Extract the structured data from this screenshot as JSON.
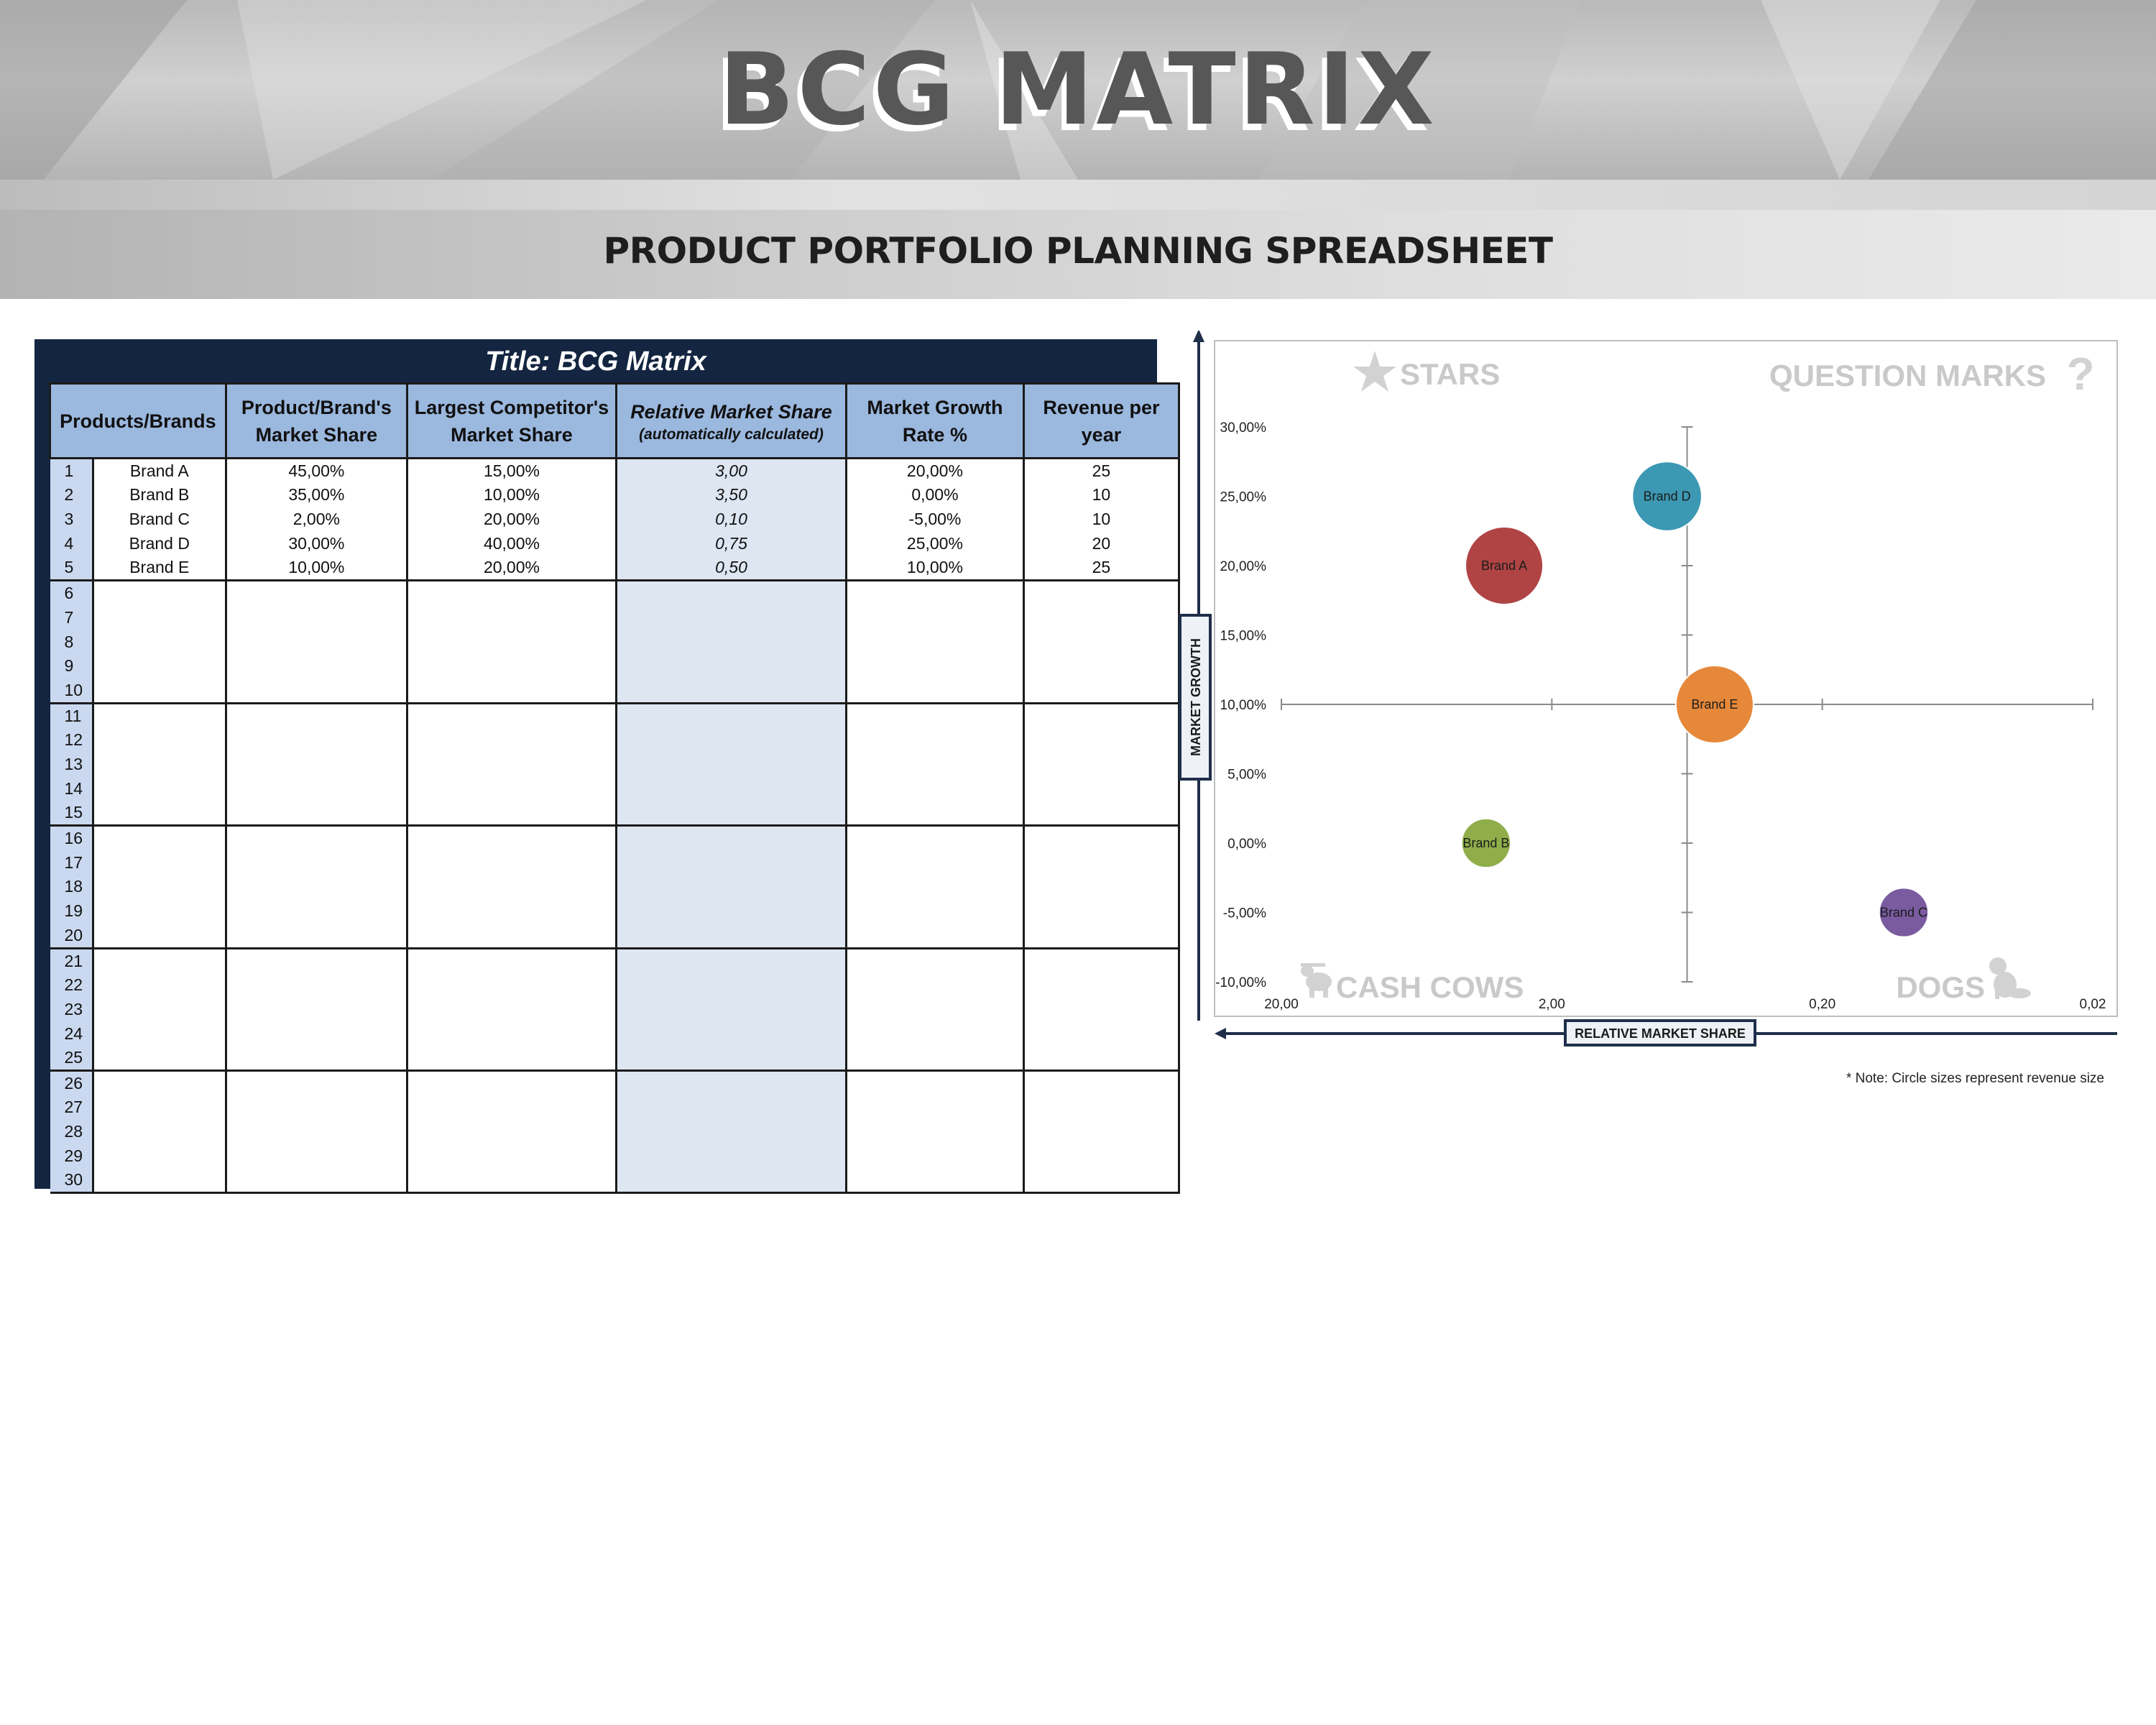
{
  "header": {
    "title": "BCG MATRIX",
    "subtitle": "PRODUCT PORTFOLIO PLANNING SPREADSHEET"
  },
  "sheet": {
    "title": "Title: BCG Matrix",
    "columns": {
      "products": "Products/Brands",
      "market_share_line1": "Product/Brand's",
      "market_share_line2": "Market Share",
      "competitor_line1": "Largest Competitor's",
      "competitor_line2": "Market Share",
      "relative": "Relative Market Share",
      "relative_note": "(automatically calculated)",
      "growth_line1": "Market Growth",
      "growth_line2": "Rate %",
      "revenue_line1": "Revenue per",
      "revenue_line2": "year"
    },
    "rows": [
      {
        "n": "1",
        "brand": "Brand A",
        "share": "45,00%",
        "competitor": "15,00%",
        "relative": "3,00",
        "growth": "20,00%",
        "revenue": "25"
      },
      {
        "n": "2",
        "brand": "Brand B",
        "share": "35,00%",
        "competitor": "10,00%",
        "relative": "3,50",
        "growth": "0,00%",
        "revenue": "10"
      },
      {
        "n": "3",
        "brand": "Brand C",
        "share": "2,00%",
        "competitor": "20,00%",
        "relative": "0,10",
        "growth": "-5,00%",
        "revenue": "10"
      },
      {
        "n": "4",
        "brand": "Brand D",
        "share": "30,00%",
        "competitor": "40,00%",
        "relative": "0,75",
        "growth": "25,00%",
        "revenue": "20"
      },
      {
        "n": "5",
        "brand": "Brand E",
        "share": "10,00%",
        "competitor": "20,00%",
        "relative": "0,50",
        "growth": "10,00%",
        "revenue": "25"
      },
      {
        "n": "6"
      },
      {
        "n": "7"
      },
      {
        "n": "8"
      },
      {
        "n": "9"
      },
      {
        "n": "10"
      },
      {
        "n": "11"
      },
      {
        "n": "12"
      },
      {
        "n": "13"
      },
      {
        "n": "14"
      },
      {
        "n": "15"
      },
      {
        "n": "16"
      },
      {
        "n": "17"
      },
      {
        "n": "18"
      },
      {
        "n": "19"
      },
      {
        "n": "20"
      },
      {
        "n": "21"
      },
      {
        "n": "22"
      },
      {
        "n": "23"
      },
      {
        "n": "24"
      },
      {
        "n": "25"
      },
      {
        "n": "26"
      },
      {
        "n": "27"
      },
      {
        "n": "28"
      },
      {
        "n": "29"
      },
      {
        "n": "30"
      }
    ]
  },
  "chart_data": {
    "type": "scatter",
    "title": "",
    "xlabel": "RELATIVE MARKET SHARE",
    "ylabel": "MARKET GROWTH",
    "x_scale": "log",
    "x_reversed": true,
    "xlim": [
      20,
      0.02
    ],
    "ylim": [
      -0.1,
      0.3
    ],
    "x_ticks": [
      "20,00",
      "2,00",
      "0,20",
      "0,02"
    ],
    "y_ticks": [
      "30,00%",
      "25,00%",
      "20,00%",
      "15,00%",
      "10,00%",
      "5,00%",
      "0,00%",
      "-5,00%",
      "-10,00%"
    ],
    "quadrants": {
      "top_left": "STARS",
      "top_right": "QUESTION MARKS",
      "bottom_left": "CASH COWS",
      "bottom_right": "DOGS"
    },
    "points": [
      {
        "label": "Brand A",
        "x": 3.0,
        "y": 0.2,
        "size": 25,
        "color": "#b04444"
      },
      {
        "label": "Brand B",
        "x": 3.5,
        "y": 0.0,
        "size": 10,
        "color": "#8fae4a"
      },
      {
        "label": "Brand C",
        "x": 0.1,
        "y": -0.05,
        "size": 10,
        "color": "#7a5ba0"
      },
      {
        "label": "Brand D",
        "x": 0.75,
        "y": 0.25,
        "size": 20,
        "color": "#3c98b3"
      },
      {
        "label": "Brand E",
        "x": 0.5,
        "y": 0.1,
        "size": 25,
        "color": "#e6883a"
      }
    ],
    "note": "* Note: Circle sizes represent revenue size"
  }
}
